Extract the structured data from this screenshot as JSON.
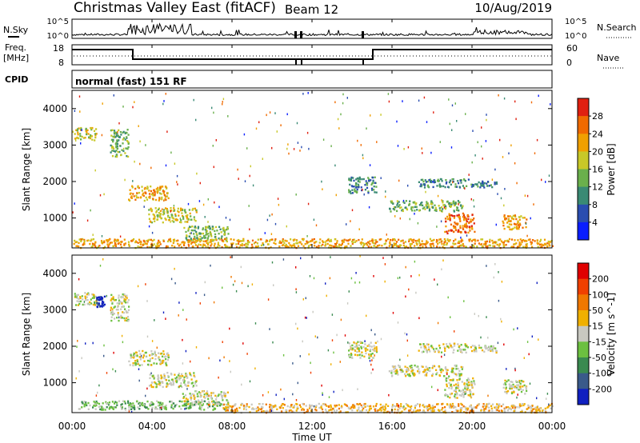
{
  "header": {
    "station": "Christmas Valley East (fitACF)",
    "beam": "Beam 12",
    "date": "10/Aug/2019"
  },
  "strip_labels": {
    "nsky": "N.Sky",
    "nsky_ticks": [
      "10^5",
      "10^0"
    ],
    "nsearch": "N.Search",
    "nsearch_ticks": [
      "10^5",
      "10^0"
    ],
    "freq": "Freq.",
    "freq_unit": "[MHz]",
    "freq_ticks": [
      "18",
      "8"
    ],
    "nave": "Nave",
    "nave_ticks": [
      "60",
      "0"
    ],
    "cpid": "CPID",
    "cpid_value": "normal (fast) 151 RF"
  },
  "x_axis": {
    "label": "Time UT",
    "ticks": [
      "00:00",
      "04:00",
      "08:00",
      "12:00",
      "16:00",
      "20:00",
      "00:00"
    ]
  },
  "chart_data": [
    {
      "type": "heatmap",
      "name": "power-panel",
      "ylabel": "Slant Range [km]",
      "yticks": [
        "1000",
        "2000",
        "3000",
        "4000"
      ],
      "ylim": [
        180,
        4500
      ],
      "xlim_hours": [
        0,
        24
      ],
      "colorbar": {
        "label": "Power [dB]",
        "ticks": [
          "4",
          "8",
          "12",
          "16",
          "20",
          "24",
          "28"
        ],
        "colors": [
          "#0a1eff",
          "#2a4db0",
          "#3a8a74",
          "#6ab04c",
          "#c8c828",
          "#f0a000",
          "#f06a00",
          "#e02010"
        ]
      },
      "regions": [
        {
          "t0": 0.1,
          "t1": 1.2,
          "r0": 3150,
          "r1": 3500,
          "level": 4
        },
        {
          "t0": 1.9,
          "t1": 2.8,
          "r0": 2700,
          "r1": 3450,
          "level": 3
        },
        {
          "t0": 2.8,
          "t1": 4.8,
          "r0": 1500,
          "r1": 1900,
          "level": 5
        },
        {
          "t0": 3.8,
          "t1": 6.2,
          "r0": 900,
          "r1": 1300,
          "level": 4
        },
        {
          "t0": 5.5,
          "t1": 7.8,
          "r0": 400,
          "r1": 800,
          "level": 3
        },
        {
          "t0": 0.0,
          "t1": 24.0,
          "r0": 200,
          "r1": 450,
          "level": 5
        },
        {
          "t0": 13.8,
          "t1": 15.2,
          "r0": 1700,
          "r1": 2150,
          "level": 2
        },
        {
          "t0": 17.3,
          "t1": 19.8,
          "r0": 1850,
          "r1": 2100,
          "level": 2
        },
        {
          "t0": 19.9,
          "t1": 21.2,
          "r0": 1850,
          "r1": 2050,
          "level": 2
        },
        {
          "t0": 15.8,
          "t1": 19.5,
          "r0": 1200,
          "r1": 1500,
          "level": 3
        },
        {
          "t0": 18.6,
          "t1": 20.1,
          "r0": 600,
          "r1": 1150,
          "level": 6
        },
        {
          "t0": 21.5,
          "t1": 22.7,
          "r0": 700,
          "r1": 1100,
          "level": 5
        }
      ]
    },
    {
      "type": "heatmap",
      "name": "velocity-panel",
      "ylabel": "Slant Range [km]",
      "yticks": [
        "1000",
        "2000",
        "3000",
        "4000"
      ],
      "ylim": [
        180,
        4500
      ],
      "xlim_hours": [
        0,
        24
      ],
      "colorbar": {
        "label": "Velocity [m s^-1]",
        "ticks": [
          "200",
          "100",
          "50",
          "15",
          "-15",
          "-50",
          "-100",
          "-200"
        ],
        "colors": [
          "#1020c0",
          "#3a5a8a",
          "#3a8a50",
          "#6cc040",
          "#c8c8c0",
          "#f0b000",
          "#f07800",
          "#f04000",
          "#e00000"
        ]
      },
      "regions": [
        {
          "t0": 0.1,
          "t1": 1.2,
          "r0": 3150,
          "r1": 3500,
          "level": 4
        },
        {
          "t0": 1.2,
          "t1": 1.6,
          "r0": 3100,
          "r1": 3400,
          "level": 0
        },
        {
          "t0": 1.9,
          "t1": 2.8,
          "r0": 2700,
          "r1": 3450,
          "level": 4
        },
        {
          "t0": 2.8,
          "t1": 4.8,
          "r0": 1500,
          "r1": 1900,
          "level": 4
        },
        {
          "t0": 3.8,
          "t1": 6.2,
          "r0": 900,
          "r1": 1300,
          "level": 4
        },
        {
          "t0": 5.5,
          "t1": 7.8,
          "r0": 400,
          "r1": 800,
          "level": 4
        },
        {
          "t0": 0.3,
          "t1": 7.5,
          "r0": 280,
          "r1": 520,
          "level": 3
        },
        {
          "t0": 7.5,
          "t1": 24.0,
          "r0": 200,
          "r1": 450,
          "level": 5
        },
        {
          "t0": 13.8,
          "t1": 15.2,
          "r0": 1700,
          "r1": 2150,
          "level": 4
        },
        {
          "t0": 17.3,
          "t1": 19.8,
          "r0": 1850,
          "r1": 2100,
          "level": 4
        },
        {
          "t0": 19.9,
          "t1": 21.2,
          "r0": 1850,
          "r1": 2050,
          "level": 4
        },
        {
          "t0": 15.8,
          "t1": 19.5,
          "r0": 1200,
          "r1": 1500,
          "level": 4
        },
        {
          "t0": 18.6,
          "t1": 20.1,
          "r0": 600,
          "r1": 1150,
          "level": 4
        },
        {
          "t0": 21.5,
          "t1": 22.7,
          "r0": 700,
          "r1": 1100,
          "level": 4
        }
      ]
    }
  ]
}
